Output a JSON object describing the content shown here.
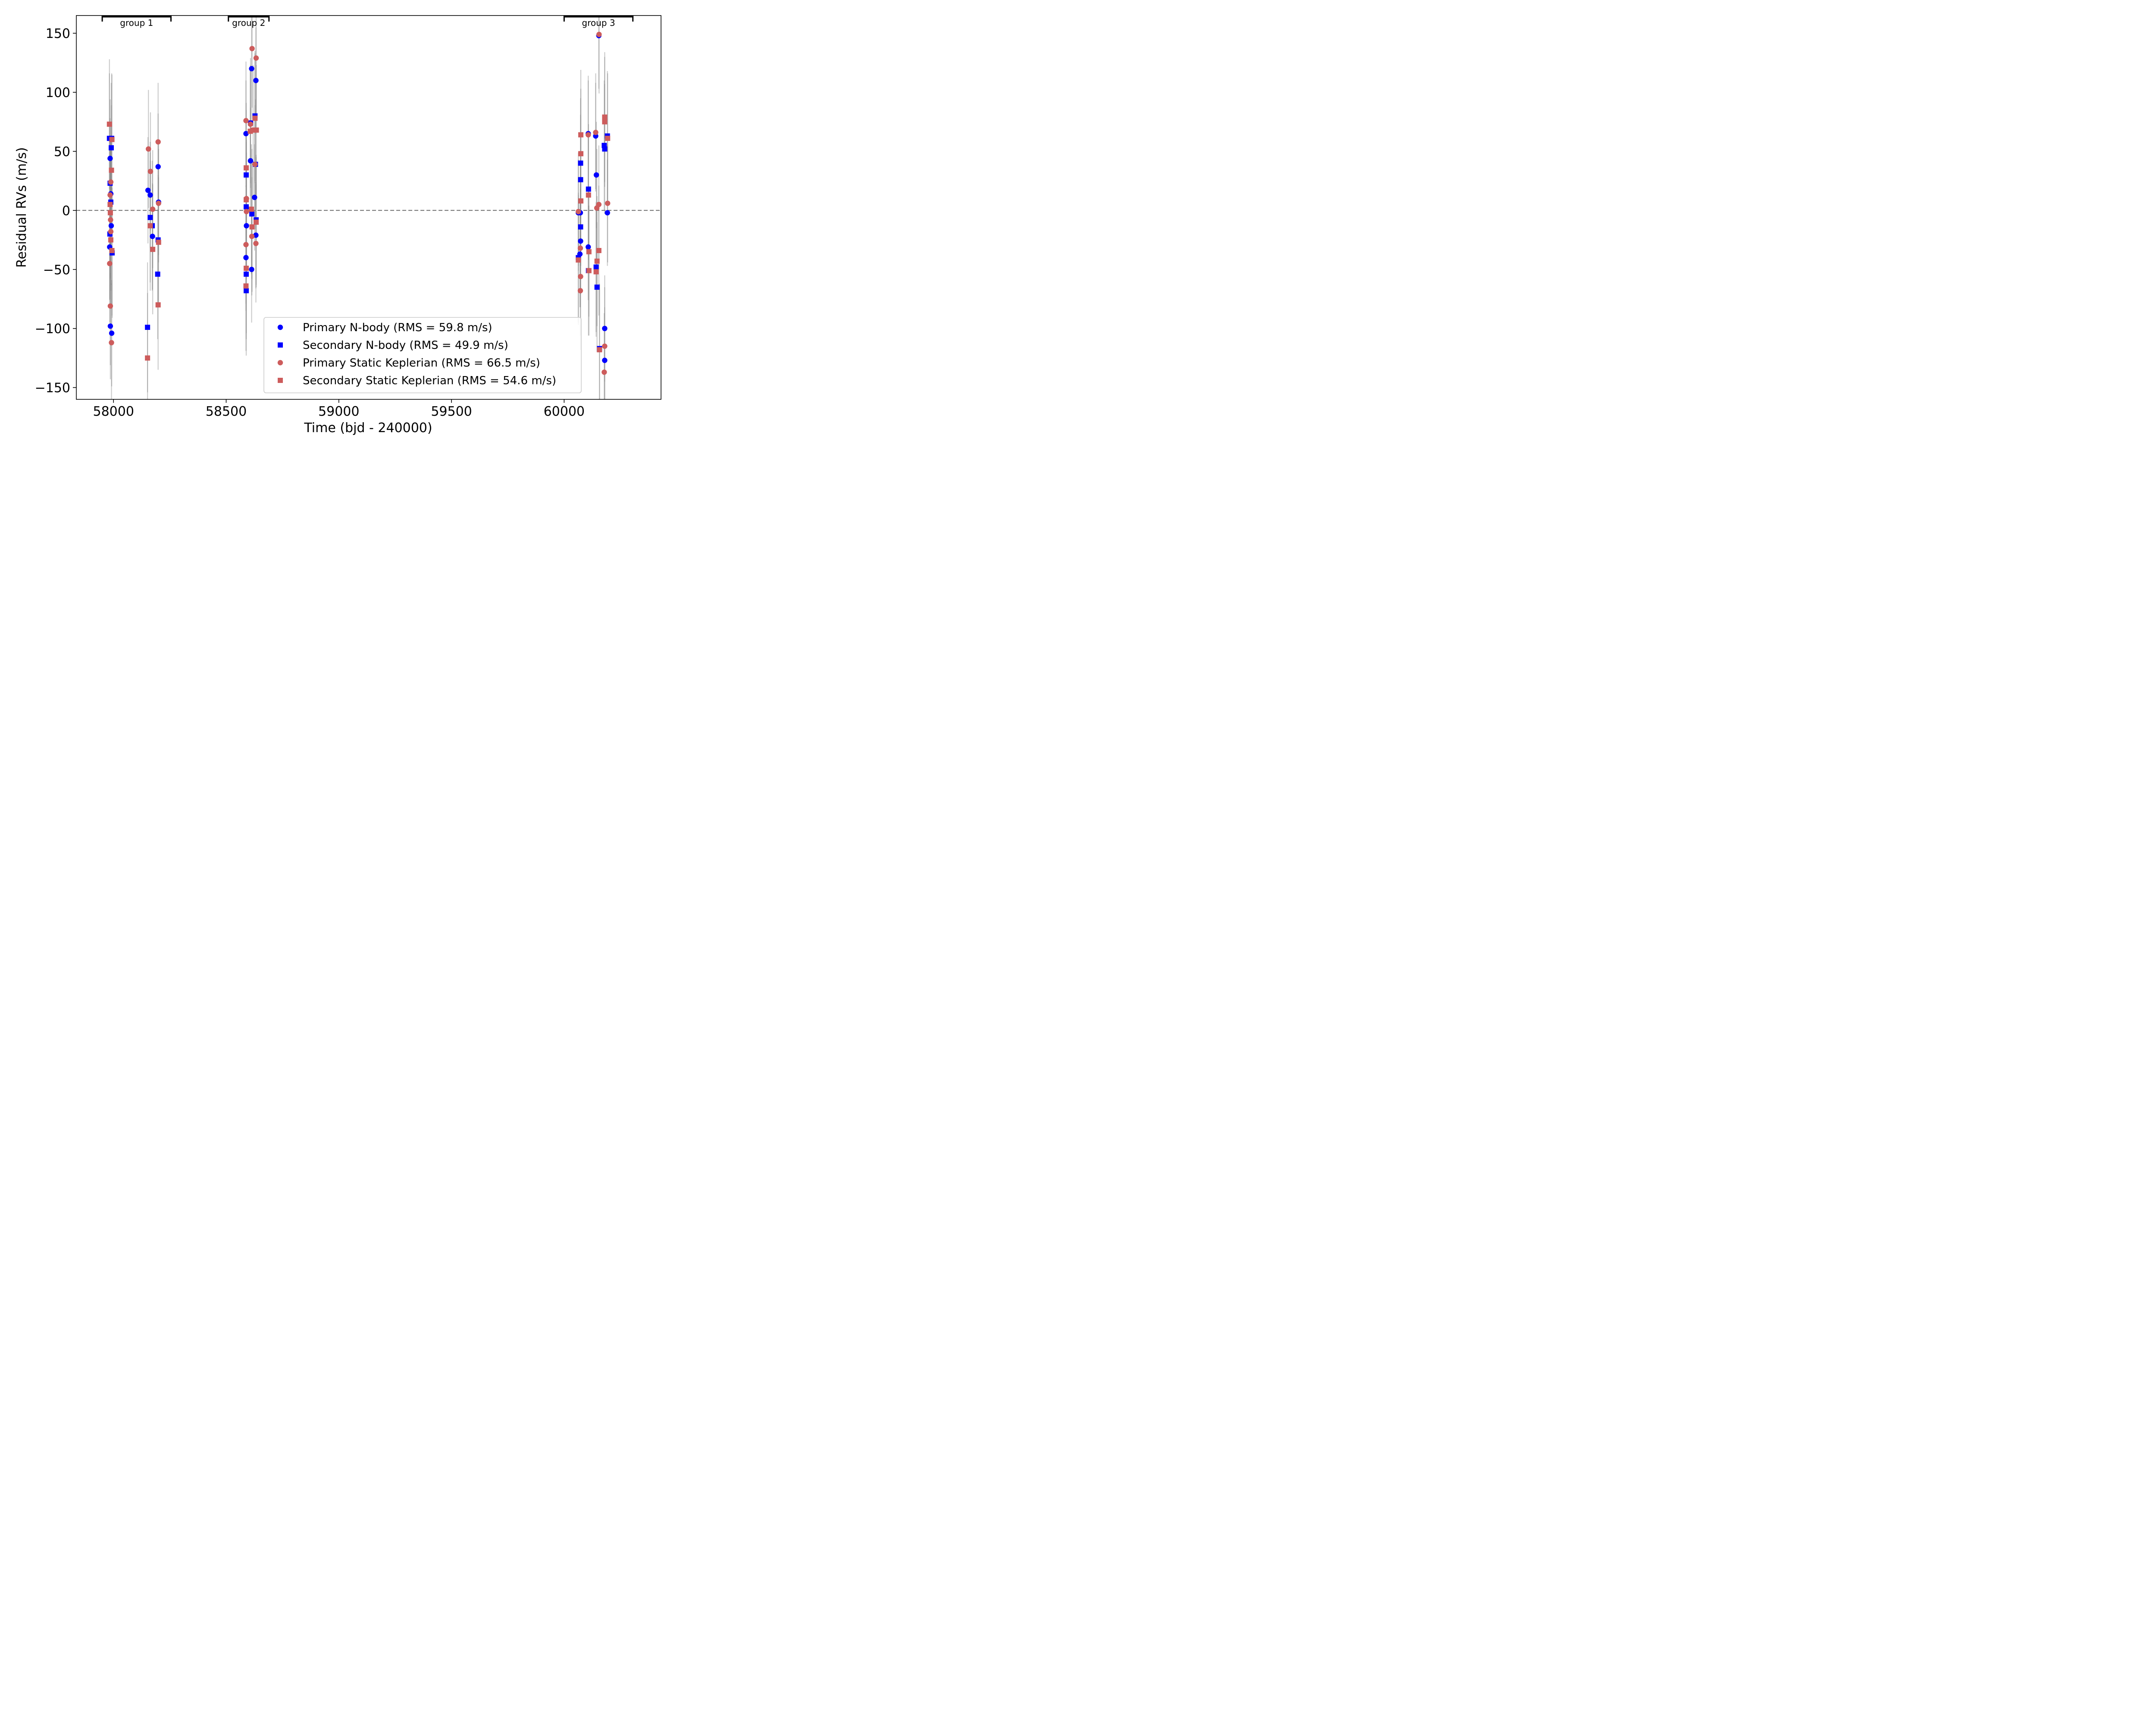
{
  "chart_data": {
    "type": "scatter",
    "title": "",
    "xlabel": "Time (bjd - 240000)",
    "ylabel": "Residual RVs (m/s)",
    "xlim": [
      57835,
      60430
    ],
    "ylim": [
      -160,
      165
    ],
    "xticks": [
      58000,
      58500,
      59000,
      59500,
      60000
    ],
    "yticks": [
      -150,
      -100,
      -50,
      0,
      50,
      100,
      150
    ],
    "xtick_labels": [
      "58000",
      "58500",
      "59000",
      "59500",
      "60000"
    ],
    "ytick_labels": [
      "−150",
      "−100",
      "−50",
      "0",
      "50",
      "100",
      "150"
    ],
    "zero_line": true,
    "groups": [
      {
        "label": "group 1",
        "x_start": 57950,
        "x_end": 58255
      },
      {
        "label": "group 2",
        "x_start": 58510,
        "x_end": 58690
      },
      {
        "label": "group 3",
        "x_start": 60000,
        "x_end": 60305
      }
    ],
    "legend": {
      "position": "lower-right"
    },
    "series": [
      {
        "name": "Primary N-body (RMS = 59.8 m/s)",
        "marker": "circle",
        "color": "#0000ff",
        "points": [
          {
            "x": 57985,
            "y": 44,
            "err": 50
          },
          {
            "x": 57988,
            "y": 14,
            "err": 45
          },
          {
            "x": 57990,
            "y": -13,
            "err": 50
          },
          {
            "x": 57983,
            "y": -31,
            "err": 45
          },
          {
            "x": 57986,
            "y": -98,
            "err": 45
          },
          {
            "x": 57992,
            "y": -104,
            "err": 45
          },
          {
            "x": 58153,
            "y": 17,
            "err": 45
          },
          {
            "x": 58163,
            "y": 13,
            "err": 45
          },
          {
            "x": 58173,
            "y": -22,
            "err": 45
          },
          {
            "x": 58198,
            "y": 37,
            "err": 45
          },
          {
            "x": 58200,
            "y": 7,
            "err": 45
          },
          {
            "x": 58588,
            "y": 65,
            "err": 45
          },
          {
            "x": 58590,
            "y": -13,
            "err": 45
          },
          {
            "x": 58588,
            "y": -40,
            "err": 45
          },
          {
            "x": 58608,
            "y": 42,
            "err": 45
          },
          {
            "x": 58613,
            "y": 120,
            "err": 45
          },
          {
            "x": 58632,
            "y": 110,
            "err": 45
          },
          {
            "x": 58626,
            "y": 11,
            "err": 45
          },
          {
            "x": 58632,
            "y": -21,
            "err": 45
          },
          {
            "x": 58613,
            "y": -50,
            "err": 45
          },
          {
            "x": 60063,
            "y": -2,
            "err": 45
          },
          {
            "x": 60072,
            "y": -2,
            "err": 45
          },
          {
            "x": 60073,
            "y": -26,
            "err": 45
          },
          {
            "x": 60070,
            "y": -37,
            "err": 45
          },
          {
            "x": 60107,
            "y": 65,
            "err": 45
          },
          {
            "x": 60107,
            "y": -31,
            "err": 45
          },
          {
            "x": 60140,
            "y": 63,
            "err": 45
          },
          {
            "x": 60143,
            "y": 30,
            "err": 45
          },
          {
            "x": 60154,
            "y": 148,
            "err": 45
          },
          {
            "x": 60180,
            "y": -100,
            "err": 45
          },
          {
            "x": 60180,
            "y": -127,
            "err": 45
          },
          {
            "x": 60192,
            "y": -2,
            "err": 45
          }
        ]
      },
      {
        "name": "Secondary N-body (RMS = 49.9 m/s)",
        "marker": "square",
        "color": "#0000ff",
        "points": [
          {
            "x": 57982,
            "y": 61,
            "err": 55
          },
          {
            "x": 57992,
            "y": 61,
            "err": 55
          },
          {
            "x": 57990,
            "y": 53,
            "err": 55
          },
          {
            "x": 57985,
            "y": 23,
            "err": 55
          },
          {
            "x": 57988,
            "y": 7,
            "err": 55
          },
          {
            "x": 57984,
            "y": -20,
            "err": 55
          },
          {
            "x": 57994,
            "y": -36,
            "err": 55
          },
          {
            "x": 58151,
            "y": -99,
            "err": 55
          },
          {
            "x": 58163,
            "y": -6,
            "err": 55
          },
          {
            "x": 58172,
            "y": -13,
            "err": 55
          },
          {
            "x": 58198,
            "y": -25,
            "err": 55
          },
          {
            "x": 58196,
            "y": -54,
            "err": 55
          },
          {
            "x": 58589,
            "y": 30,
            "err": 55
          },
          {
            "x": 58589,
            "y": 3,
            "err": 55
          },
          {
            "x": 58589,
            "y": -54,
            "err": 55
          },
          {
            "x": 58589,
            "y": -68,
            "err": 55
          },
          {
            "x": 58608,
            "y": 74,
            "err": 55
          },
          {
            "x": 58628,
            "y": 80,
            "err": 55
          },
          {
            "x": 58630,
            "y": 39,
            "err": 55
          },
          {
            "x": 58614,
            "y": -3,
            "err": 55
          },
          {
            "x": 58633,
            "y": -8,
            "err": 55
          },
          {
            "x": 60063,
            "y": -40,
            "err": 55
          },
          {
            "x": 60073,
            "y": 40,
            "err": 55
          },
          {
            "x": 60073,
            "y": 26,
            "err": 55
          },
          {
            "x": 60073,
            "y": -14,
            "err": 55
          },
          {
            "x": 60108,
            "y": 18,
            "err": 55
          },
          {
            "x": 60108,
            "y": -51,
            "err": 55
          },
          {
            "x": 60142,
            "y": -48,
            "err": 55
          },
          {
            "x": 60146,
            "y": -65,
            "err": 55
          },
          {
            "x": 60178,
            "y": 55,
            "err": 55
          },
          {
            "x": 60180,
            "y": 52,
            "err": 55
          },
          {
            "x": 60192,
            "y": 63,
            "err": 55
          },
          {
            "x": 60157,
            "y": -117,
            "err": 55
          }
        ]
      },
      {
        "name": "Primary Static Keplerian (RMS = 66.5 m/s)",
        "marker": "circle",
        "color": "#cd5c5c",
        "points": [
          {
            "x": 57988,
            "y": 24,
            "err": 50
          },
          {
            "x": 57985,
            "y": 13,
            "err": 50
          },
          {
            "x": 57987,
            "y": -8,
            "err": 50
          },
          {
            "x": 57988,
            "y": -18,
            "err": 50
          },
          {
            "x": 57983,
            "y": -45,
            "err": 50
          },
          {
            "x": 57986,
            "y": -81,
            "err": 50
          },
          {
            "x": 57991,
            "y": -112,
            "err": 50
          },
          {
            "x": 58155,
            "y": 52,
            "err": 50
          },
          {
            "x": 58164,
            "y": 33,
            "err": 50
          },
          {
            "x": 58174,
            "y": 1,
            "err": 50
          },
          {
            "x": 58198,
            "y": 58,
            "err": 50
          },
          {
            "x": 58200,
            "y": 6,
            "err": 50
          },
          {
            "x": 58588,
            "y": 76,
            "err": 50
          },
          {
            "x": 58590,
            "y": 10,
            "err": 50
          },
          {
            "x": 58590,
            "y": -1,
            "err": 50
          },
          {
            "x": 58588,
            "y": -29,
            "err": 50
          },
          {
            "x": 58608,
            "y": 73,
            "err": 50
          },
          {
            "x": 58615,
            "y": 137,
            "err": 50
          },
          {
            "x": 58633,
            "y": 129,
            "err": 50
          },
          {
            "x": 58628,
            "y": 39,
            "err": 50
          },
          {
            "x": 58614,
            "y": -22,
            "err": 50
          },
          {
            "x": 58632,
            "y": -28,
            "err": 50
          },
          {
            "x": 60063,
            "y": -1,
            "err": 50
          },
          {
            "x": 60072,
            "y": -32,
            "err": 50
          },
          {
            "x": 60073,
            "y": -56,
            "err": 50
          },
          {
            "x": 60072,
            "y": -68,
            "err": 50
          },
          {
            "x": 60107,
            "y": 64,
            "err": 50
          },
          {
            "x": 60140,
            "y": 66,
            "err": 50
          },
          {
            "x": 60145,
            "y": 2,
            "err": 50
          },
          {
            "x": 60154,
            "y": 5,
            "err": 50
          },
          {
            "x": 60155,
            "y": 149,
            "err": 50
          },
          {
            "x": 60180,
            "y": -115,
            "err": 50
          },
          {
            "x": 60178,
            "y": -137,
            "err": 50
          },
          {
            "x": 60193,
            "y": 6,
            "err": 50
          }
        ]
      },
      {
        "name": "Secondary Static Keplerian (RMS = 54.6 m/s)",
        "marker": "square",
        "color": "#cd5c5c",
        "points": [
          {
            "x": 57982,
            "y": 73,
            "err": 55
          },
          {
            "x": 57993,
            "y": 60,
            "err": 55
          },
          {
            "x": 57991,
            "y": 34,
            "err": 55
          },
          {
            "x": 57985,
            "y": 5,
            "err": 55
          },
          {
            "x": 57986,
            "y": -2,
            "err": 55
          },
          {
            "x": 57988,
            "y": -25,
            "err": 55
          },
          {
            "x": 57993,
            "y": -34,
            "err": 55
          },
          {
            "x": 58151,
            "y": -125,
            "err": 55
          },
          {
            "x": 58163,
            "y": -13,
            "err": 55
          },
          {
            "x": 58174,
            "y": -33,
            "err": 55
          },
          {
            "x": 58200,
            "y": -27,
            "err": 55
          },
          {
            "x": 58198,
            "y": -80,
            "err": 55
          },
          {
            "x": 58589,
            "y": 36,
            "err": 55
          },
          {
            "x": 58589,
            "y": 9,
            "err": 55
          },
          {
            "x": 58589,
            "y": -49,
            "err": 55
          },
          {
            "x": 58588,
            "y": -64,
            "err": 55
          },
          {
            "x": 58607,
            "y": 67,
            "err": 55
          },
          {
            "x": 58628,
            "y": 78,
            "err": 55
          },
          {
            "x": 58634,
            "y": 68,
            "err": 55
          },
          {
            "x": 58620,
            "y": 68,
            "err": 55
          },
          {
            "x": 58612,
            "y": 1,
            "err": 55
          },
          {
            "x": 58615,
            "y": -14,
            "err": 55
          },
          {
            "x": 58633,
            "y": -10,
            "err": 55
          },
          {
            "x": 60063,
            "y": -42,
            "err": 55
          },
          {
            "x": 60074,
            "y": 64,
            "err": 55
          },
          {
            "x": 60074,
            "y": 48,
            "err": 55
          },
          {
            "x": 60074,
            "y": 8,
            "err": 55
          },
          {
            "x": 60108,
            "y": 13,
            "err": 55
          },
          {
            "x": 60110,
            "y": -35,
            "err": 55
          },
          {
            "x": 60110,
            "y": -51,
            "err": 55
          },
          {
            "x": 60142,
            "y": -52,
            "err": 55
          },
          {
            "x": 60146,
            "y": -43,
            "err": 55
          },
          {
            "x": 60154,
            "y": -34,
            "err": 55
          },
          {
            "x": 60157,
            "y": -118,
            "err": 55
          },
          {
            "x": 60180,
            "y": 79,
            "err": 55
          },
          {
            "x": 60180,
            "y": 75,
            "err": 55
          },
          {
            "x": 60193,
            "y": 61,
            "err": 55
          }
        ]
      }
    ]
  }
}
